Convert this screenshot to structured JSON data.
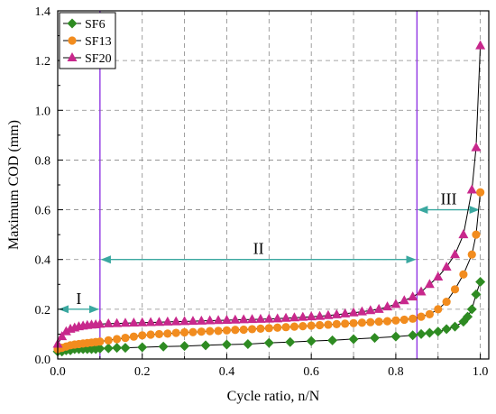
{
  "chart_data": {
    "type": "scatter",
    "title": "",
    "xlabel": "Cycle ratio, n/N",
    "ylabel": "Maximum COD (mm)",
    "xlim": [
      0.0,
      1.02
    ],
    "ylim": [
      0.0,
      1.4
    ],
    "x_ticks": [
      "0.0",
      "0.2",
      "0.4",
      "0.6",
      "0.8",
      "1.0"
    ],
    "y_ticks": [
      "0.0",
      "0.2",
      "0.4",
      "0.6",
      "0.8",
      "1.0",
      "1.2",
      "1.4"
    ],
    "grid": "dashed",
    "legend_position": "top-left",
    "regions": [
      {
        "label": "I",
        "from": 0.0,
        "to": 0.1,
        "y": 0.2
      },
      {
        "label": "II",
        "from": 0.1,
        "to": 0.85,
        "y": 0.4
      },
      {
        "label": "III",
        "from": 0.85,
        "to": 1.0,
        "y": 0.6
      }
    ],
    "region_boundaries": [
      0.1,
      0.85
    ],
    "series": [
      {
        "name": "SF6",
        "marker": "diamond",
        "color": "#2e8b22",
        "x": [
          0.0,
          0.01,
          0.02,
          0.03,
          0.04,
          0.05,
          0.06,
          0.07,
          0.08,
          0.09,
          0.1,
          0.12,
          0.14,
          0.16,
          0.2,
          0.25,
          0.3,
          0.35,
          0.4,
          0.45,
          0.5,
          0.55,
          0.6,
          0.65,
          0.7,
          0.75,
          0.8,
          0.84,
          0.86,
          0.88,
          0.9,
          0.92,
          0.94,
          0.96,
          0.97,
          0.98,
          0.99,
          1.0
        ],
        "y": [
          0.03,
          0.03,
          0.035,
          0.035,
          0.04,
          0.04,
          0.04,
          0.04,
          0.04,
          0.04,
          0.042,
          0.043,
          0.045,
          0.045,
          0.047,
          0.05,
          0.052,
          0.055,
          0.058,
          0.06,
          0.065,
          0.068,
          0.072,
          0.075,
          0.08,
          0.085,
          0.09,
          0.095,
          0.1,
          0.105,
          0.11,
          0.12,
          0.13,
          0.15,
          0.17,
          0.2,
          0.26,
          0.31
        ]
      },
      {
        "name": "SF13",
        "marker": "circle",
        "color": "#f28c1e",
        "x": [
          0.0,
          0.01,
          0.02,
          0.03,
          0.04,
          0.05,
          0.06,
          0.07,
          0.08,
          0.09,
          0.1,
          0.12,
          0.14,
          0.16,
          0.18,
          0.2,
          0.22,
          0.24,
          0.26,
          0.28,
          0.3,
          0.32,
          0.34,
          0.36,
          0.38,
          0.4,
          0.42,
          0.44,
          0.46,
          0.48,
          0.5,
          0.52,
          0.54,
          0.56,
          0.58,
          0.6,
          0.62,
          0.64,
          0.66,
          0.68,
          0.7,
          0.72,
          0.74,
          0.76,
          0.78,
          0.8,
          0.82,
          0.84,
          0.86,
          0.88,
          0.9,
          0.92,
          0.94,
          0.96,
          0.98,
          0.99,
          1.0
        ],
        "y": [
          0.04,
          0.045,
          0.05,
          0.055,
          0.058,
          0.06,
          0.062,
          0.064,
          0.066,
          0.068,
          0.07,
          0.075,
          0.08,
          0.085,
          0.09,
          0.095,
          0.098,
          0.1,
          0.102,
          0.105,
          0.107,
          0.108,
          0.11,
          0.112,
          0.113,
          0.115,
          0.117,
          0.118,
          0.12,
          0.122,
          0.124,
          0.126,
          0.128,
          0.13,
          0.132,
          0.134,
          0.136,
          0.138,
          0.14,
          0.142,
          0.144,
          0.146,
          0.148,
          0.15,
          0.152,
          0.155,
          0.158,
          0.162,
          0.17,
          0.18,
          0.2,
          0.23,
          0.28,
          0.34,
          0.42,
          0.5,
          0.67
        ]
      },
      {
        "name": "SF20",
        "marker": "triangle",
        "color": "#c8288c",
        "x": [
          0.0,
          0.01,
          0.02,
          0.03,
          0.04,
          0.05,
          0.06,
          0.07,
          0.08,
          0.09,
          0.1,
          0.12,
          0.14,
          0.16,
          0.18,
          0.2,
          0.22,
          0.24,
          0.26,
          0.28,
          0.3,
          0.32,
          0.34,
          0.36,
          0.38,
          0.4,
          0.42,
          0.44,
          0.46,
          0.48,
          0.5,
          0.52,
          0.54,
          0.56,
          0.58,
          0.6,
          0.62,
          0.64,
          0.66,
          0.68,
          0.7,
          0.72,
          0.74,
          0.76,
          0.78,
          0.8,
          0.82,
          0.84,
          0.86,
          0.88,
          0.9,
          0.92,
          0.94,
          0.96,
          0.98,
          0.99,
          1.0
        ],
        "y": [
          0.06,
          0.09,
          0.11,
          0.12,
          0.125,
          0.13,
          0.133,
          0.135,
          0.137,
          0.138,
          0.14,
          0.142,
          0.143,
          0.144,
          0.145,
          0.146,
          0.147,
          0.148,
          0.149,
          0.15,
          0.151,
          0.152,
          0.153,
          0.154,
          0.155,
          0.156,
          0.157,
          0.158,
          0.159,
          0.16,
          0.161,
          0.162,
          0.164,
          0.166,
          0.168,
          0.17,
          0.172,
          0.175,
          0.178,
          0.182,
          0.186,
          0.19,
          0.195,
          0.2,
          0.21,
          0.22,
          0.235,
          0.25,
          0.27,
          0.3,
          0.33,
          0.37,
          0.42,
          0.5,
          0.68,
          0.85,
          1.26
        ]
      }
    ]
  }
}
